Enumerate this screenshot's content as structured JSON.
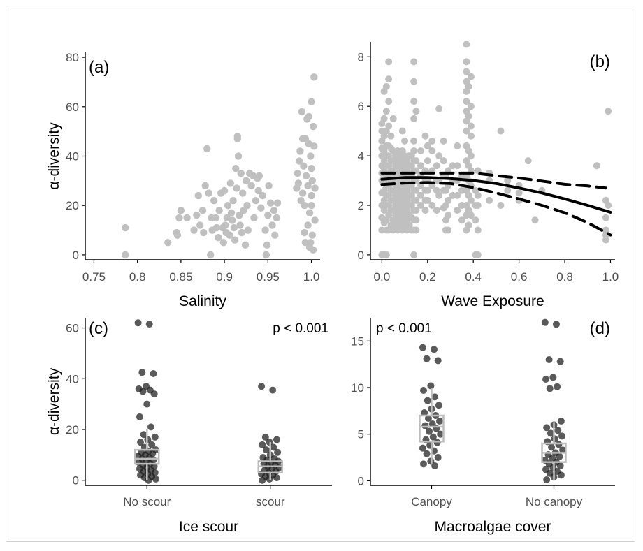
{
  "figure": {
    "colors": {
      "light_point": "#c0c0c0",
      "dark_point": "#1a1a1a",
      "box": "#bdbdbd",
      "axis": "#000000",
      "fit": "#000000"
    }
  },
  "chart_data": [
    {
      "panel": "a",
      "type": "scatter",
      "tag": "(a)",
      "xlabel": "Salinity",
      "ylabel": "α-diversity",
      "xlim": [
        0.74,
        1.01
      ],
      "ylim": [
        -2,
        82
      ],
      "xticks": [
        0.75,
        0.8,
        0.85,
        0.9,
        0.95,
        1.0
      ],
      "xtick_labels": [
        "0.75",
        "0.8",
        "0.85",
        "0.9",
        "0.95",
        "1.0"
      ],
      "yticks": [
        0,
        20,
        40,
        60,
        80
      ],
      "ytick_labels": [
        "0",
        "20",
        "40",
        "60",
        "80"
      ],
      "points": [
        [
          0.786,
          11
        ],
        [
          0.786,
          0
        ],
        [
          0.835,
          5
        ],
        [
          0.845,
          9
        ],
        [
          0.846,
          8
        ],
        [
          0.848,
          15
        ],
        [
          0.85,
          18
        ],
        [
          0.857,
          15
        ],
        [
          0.865,
          10
        ],
        [
          0.868,
          16
        ],
        [
          0.87,
          24
        ],
        [
          0.872,
          12
        ],
        [
          0.875,
          18
        ],
        [
          0.876,
          9
        ],
        [
          0.878,
          28
        ],
        [
          0.88,
          43
        ],
        [
          0.882,
          25
        ],
        [
          0.884,
          0
        ],
        [
          0.885,
          15
        ],
        [
          0.886,
          10
        ],
        [
          0.888,
          22
        ],
        [
          0.89,
          15
        ],
        [
          0.891,
          11
        ],
        [
          0.893,
          7
        ],
        [
          0.894,
          18
        ],
        [
          0.896,
          25
        ],
        [
          0.898,
          11
        ],
        [
          0.899,
          5
        ],
        [
          0.9,
          26
        ],
        [
          0.901,
          12
        ],
        [
          0.902,
          9
        ],
        [
          0.903,
          15
        ],
        [
          0.904,
          20
        ],
        [
          0.906,
          8
        ],
        [
          0.907,
          29
        ],
        [
          0.908,
          17
        ],
        [
          0.909,
          14
        ],
        [
          0.91,
          22
        ],
        [
          0.911,
          11
        ],
        [
          0.912,
          6
        ],
        [
          0.913,
          35
        ],
        [
          0.914,
          27
        ],
        [
          0.915,
          47
        ],
        [
          0.915,
          48
        ],
        [
          0.916,
          40
        ],
        [
          0.917,
          16
        ],
        [
          0.918,
          12
        ],
        [
          0.919,
          33
        ],
        [
          0.92,
          9
        ],
        [
          0.921,
          25
        ],
        [
          0.922,
          18
        ],
        [
          0.924,
          4
        ],
        [
          0.925,
          30
        ],
        [
          0.926,
          20
        ],
        [
          0.927,
          10
        ],
        [
          0.929,
          33
        ],
        [
          0.931,
          28
        ],
        [
          0.933,
          32
        ],
        [
          0.934,
          15
        ],
        [
          0.936,
          22
        ],
        [
          0.938,
          31
        ],
        [
          0.939,
          26
        ],
        [
          0.94,
          32
        ],
        [
          0.942,
          19
        ],
        [
          0.944,
          24
        ],
        [
          0.947,
          10
        ],
        [
          0.948,
          0
        ],
        [
          0.949,
          4
        ],
        [
          0.95,
          16
        ],
        [
          0.951,
          28
        ],
        [
          0.953,
          21
        ],
        [
          0.955,
          12
        ],
        [
          0.957,
          18
        ],
        [
          0.958,
          8
        ],
        [
          0.96,
          15
        ],
        [
          0.961,
          21
        ],
        [
          0.983,
          27
        ],
        [
          0.984,
          33
        ],
        [
          0.985,
          29
        ],
        [
          0.986,
          38
        ],
        [
          0.987,
          42
        ],
        [
          0.988,
          22
        ],
        [
          0.989,
          58
        ],
        [
          0.99,
          25
        ],
        [
          0.991,
          36
        ],
        [
          0.992,
          20
        ],
        [
          0.993,
          47
        ],
        [
          0.993,
          5
        ],
        [
          0.994,
          32
        ],
        [
          0.995,
          55
        ],
        [
          0.996,
          28
        ],
        [
          0.996,
          12
        ],
        [
          0.997,
          45
        ],
        [
          0.998,
          3
        ],
        [
          0.998,
          17
        ],
        [
          0.999,
          40
        ],
        [
          1.0,
          62
        ],
        [
          1.0,
          35
        ],
        [
          1.0,
          24
        ],
        [
          1.001,
          30
        ],
        [
          1.001,
          8
        ],
        [
          1.002,
          52
        ],
        [
          1.002,
          2
        ],
        [
          1.003,
          72
        ],
        [
          1.003,
          44
        ],
        [
          1.004,
          14
        ],
        [
          1.004,
          27
        ],
        [
          0.99,
          47
        ],
        [
          0.992,
          9
        ],
        [
          0.997,
          56
        ],
        [
          0.999,
          5
        ],
        [
          1.0,
          20
        ]
      ]
    },
    {
      "panel": "b",
      "type": "scatter",
      "tag": "(b)",
      "xlabel": "Wave Exposure",
      "ylabel": "",
      "xlim": [
        -0.05,
        1.02
      ],
      "ylim": [
        -0.2,
        8.6
      ],
      "xticks": [
        0.0,
        0.2,
        0.4,
        0.6,
        0.8,
        1.0
      ],
      "xtick_labels": [
        "0.0",
        "0.2",
        "0.4",
        "0.6",
        "0.8",
        "1.0"
      ],
      "yticks": [
        0,
        2,
        4,
        6,
        8
      ],
      "ytick_labels": [
        "0",
        "2",
        "4",
        "6",
        "8"
      ],
      "columns": [
        [
          0.0,
          [
            0,
            1,
            1.5,
            2,
            2.5,
            3,
            3.3,
            3.6,
            4,
            4.3,
            4.6,
            5,
            5.3
          ]
        ],
        [
          0.01,
          [
            0,
            1.3,
            1.8,
            2.2,
            2.6,
            3,
            3.4,
            3.8,
            4.2,
            4.8,
            5.5,
            6.6
          ]
        ],
        [
          0.02,
          [
            0,
            1,
            1.4,
            2,
            2.4,
            2.8,
            3.2,
            3.6,
            4,
            4.4,
            5,
            5.8,
            6.8
          ]
        ],
        [
          0.03,
          [
            1,
            1.6,
            2,
            2.4,
            2.8,
            3.2,
            3.6,
            4,
            4.4,
            5.2,
            6.2,
            7.1,
            7.8
          ]
        ],
        [
          0.04,
          [
            1.2,
            1.8,
            2.2,
            2.6,
            3,
            3.4,
            3.8,
            4.3,
            4.8
          ]
        ],
        [
          0.05,
          [
            1,
            1.4,
            1.8,
            2.2,
            2.6,
            3,
            3.4,
            3.8,
            4.2,
            5.5
          ]
        ],
        [
          0.06,
          [
            1.2,
            1.6,
            2,
            2.4,
            2.8,
            3.2,
            3.6,
            4
          ]
        ],
        [
          0.07,
          [
            1,
            1.4,
            1.8,
            2.2,
            2.6,
            3,
            3.4,
            3.8,
            4.2
          ]
        ],
        [
          0.08,
          [
            1.2,
            1.6,
            2,
            2.4,
            2.8,
            3.2,
            3.6,
            4
          ]
        ],
        [
          0.09,
          [
            1,
            1.4,
            1.8,
            2.2,
            2.6,
            3,
            3.4,
            3.8,
            4.2,
            5
          ]
        ],
        [
          0.1,
          [
            1.2,
            1.6,
            2,
            2.4,
            2.8,
            3.2,
            3.6,
            4,
            4.6
          ]
        ],
        [
          0.11,
          [
            1,
            1.4,
            1.8,
            2.2,
            2.6,
            3,
            3.4,
            3.8
          ]
        ],
        [
          0.12,
          [
            1.2,
            1.6,
            2,
            2.4,
            2.8,
            3.2,
            3.6,
            4
          ]
        ],
        [
          0.13,
          [
            1,
            1.5,
            2,
            2.4,
            2.8,
            3.2,
            3.6,
            4
          ]
        ],
        [
          0.14,
          [
            0,
            1,
            1.4,
            1.8,
            2.2,
            2.6,
            3,
            3.4,
            3.8,
            4.2,
            4.6,
            5.5,
            6.2,
            7,
            7.8
          ]
        ],
        [
          0.15,
          [
            1,
            1.4,
            1.8,
            2.2,
            2.6,
            3,
            3.4,
            3.8,
            5.8
          ]
        ],
        [
          0.17,
          [
            2,
            2.4,
            2.8,
            3.2,
            3.6,
            4.2
          ]
        ],
        [
          0.19,
          [
            1.8,
            2.2,
            2.6,
            3,
            3.4,
            4.8
          ]
        ],
        [
          0.2,
          [
            2.2,
            2.6,
            3,
            3.8,
            4.4
          ]
        ],
        [
          0.22,
          [
            2,
            2.8,
            3.4,
            4.2,
            4.6
          ]
        ],
        [
          0.24,
          [
            1.8,
            2.6,
            3,
            3.6
          ]
        ],
        [
          0.25,
          [
            2.4,
            3,
            4,
            5.9
          ]
        ],
        [
          0.27,
          [
            1.9,
            2.6,
            3.2,
            3.8,
            4.6
          ]
        ],
        [
          0.28,
          [
            1,
            1.4,
            2,
            2.6,
            3.2
          ]
        ],
        [
          0.29,
          [
            1,
            1.6,
            2.2,
            2.8,
            3.4
          ]
        ],
        [
          0.31,
          [
            2.4,
            3,
            3.6
          ]
        ],
        [
          0.33,
          [
            1.8,
            2.4,
            3,
            3.6,
            4.4
          ]
        ],
        [
          0.35,
          [
            1.4,
            2,
            2.6,
            3.2
          ]
        ],
        [
          0.37,
          [
            1,
            1.6,
            2,
            2.6,
            3.2,
            3.8,
            4.4,
            5,
            5.4,
            5.8,
            6.2,
            6.6,
            7,
            7.4,
            7.8,
            8.5
          ]
        ],
        [
          0.38,
          [
            1.2,
            1.8,
            2.4,
            3,
            3.6,
            4.2,
            5.6,
            6.8
          ]
        ],
        [
          0.39,
          [
            1.6,
            2.2,
            2.8,
            3.4,
            4,
            4.8,
            5.2,
            6,
            7.2
          ]
        ],
        [
          0.41,
          [
            0,
            1.4,
            2,
            2.6
          ]
        ],
        [
          0.42,
          [
            0,
            1,
            2,
            2.4,
            3.4
          ]
        ],
        [
          0.47,
          [
            2.2,
            3,
            3.3
          ]
        ],
        [
          0.52,
          [
            5,
            2
          ]
        ],
        [
          0.55,
          [
            2.6,
            3
          ]
        ],
        [
          0.6,
          [
            2.2,
            2.8,
            2.5
          ]
        ],
        [
          0.64,
          [
            3.8
          ]
        ],
        [
          0.67,
          [
            1.4
          ]
        ],
        [
          0.7,
          [
            2.6
          ]
        ],
        [
          0.94,
          [
            3.6
          ]
        ],
        [
          0.98,
          [
            2.2,
            1,
            1.5,
            0.8,
            0.6
          ]
        ],
        [
          0.99,
          [
            5.8,
            2
          ]
        ]
      ],
      "fit": {
        "x": [
          0,
          0.1,
          0.2,
          0.3,
          0.4,
          0.5,
          0.6,
          0.7,
          0.8,
          0.9,
          1.0
        ],
        "y": [
          3.05,
          3.12,
          3.12,
          3.08,
          3.0,
          2.88,
          2.7,
          2.5,
          2.26,
          2.0,
          1.72
        ]
      },
      "fit_upper": {
        "x": [
          0,
          0.1,
          0.2,
          0.3,
          0.4,
          0.5,
          0.6,
          0.7,
          0.8,
          0.9,
          0.98
        ],
        "y": [
          3.3,
          3.3,
          3.3,
          3.3,
          3.3,
          3.2,
          3.1,
          2.98,
          2.85,
          2.78,
          2.7
        ]
      },
      "fit_lower": {
        "x": [
          0,
          0.1,
          0.2,
          0.3,
          0.4,
          0.5,
          0.6,
          0.7,
          0.8,
          0.9,
          1.0
        ],
        "y": [
          2.84,
          2.9,
          2.92,
          2.88,
          2.72,
          2.5,
          2.26,
          2.0,
          1.7,
          1.3,
          0.8
        ]
      }
    },
    {
      "panel": "c",
      "type": "box-jitter",
      "tag": "(c)",
      "annotation": "p < 0.001",
      "xlabel": "Ice scour",
      "ylabel": "α-diversity",
      "ylim": [
        -2,
        64
      ],
      "categories": [
        "No scour",
        "scour"
      ],
      "yticks": [
        0,
        20,
        40,
        60
      ],
      "ytick_labels": [
        "0",
        "20",
        "40",
        "60"
      ],
      "boxes": [
        {
          "q1": 6.5,
          "median": 8.5,
          "q3": 12,
          "whisker_low": 0,
          "whisker_high": 20
        },
        {
          "q1": 3,
          "median": 5.5,
          "q3": 7.5,
          "whisker_low": 0,
          "whisker_high": 15
        }
      ],
      "points": [
        [
          62,
          61.5,
          42.5,
          42,
          37,
          36,
          35.5,
          35,
          34,
          30,
          25,
          21,
          18,
          17,
          16,
          15,
          14,
          13,
          12,
          11.5,
          11,
          10.5,
          10,
          9.5,
          9,
          8.5,
          8,
          7.5,
          7,
          6.5,
          6,
          5.5,
          5,
          4.5,
          4,
          3.5,
          3,
          2.5,
          2,
          1.5,
          1,
          0.5,
          0
        ],
        [
          37,
          35.5,
          17,
          16,
          15,
          14,
          13,
          12,
          11,
          10,
          9,
          8.5,
          8,
          7.5,
          7,
          6.5,
          6,
          5.5,
          5,
          4.5,
          4,
          3.5,
          3,
          2.5,
          2,
          1.5,
          1,
          0.5,
          0
        ]
      ]
    },
    {
      "panel": "d",
      "type": "box-jitter",
      "tag": "(d)",
      "annotation": "p < 0.001",
      "xlabel": "Macroalgae cover",
      "ylabel": "",
      "ylim": [
        -0.5,
        17.5
      ],
      "categories": [
        "Canopy",
        "No canopy"
      ],
      "yticks": [
        0,
        5,
        10,
        15
      ],
      "ytick_labels": [
        "0",
        "5",
        "10",
        "15"
      ],
      "boxes": [
        {
          "q1": 4.2,
          "median": 5.8,
          "q3": 7,
          "whisker_low": 1.8,
          "whisker_high": 10
        },
        {
          "q1": 2,
          "median": 3,
          "q3": 4,
          "whisker_low": 0,
          "whisker_high": 6.3
        }
      ],
      "points": [
        [
          14.3,
          14.1,
          13.1,
          12.9,
          10.2,
          9.7,
          9,
          8.6,
          8.1,
          7.7,
          7.3,
          7,
          6.7,
          6.4,
          6.1,
          5.9,
          5.6,
          5.3,
          5,
          4.7,
          4.4,
          4.1,
          3.8,
          3.5,
          3.2,
          2.9,
          2.5,
          2.1,
          1.8,
          1.6
        ],
        [
          17,
          16.8,
          13,
          12.8,
          11.1,
          10.9,
          10.1,
          9.9,
          6.4,
          6,
          5.7,
          5.4,
          5.1,
          4.8,
          4.5,
          4.2,
          3.9,
          3.6,
          3.3,
          3,
          2.8,
          2.6,
          2.4,
          2.2,
          2,
          1.8,
          1.6,
          1.4,
          1.2,
          1,
          0.8,
          0.6,
          0.4,
          0.1
        ]
      ]
    }
  ]
}
